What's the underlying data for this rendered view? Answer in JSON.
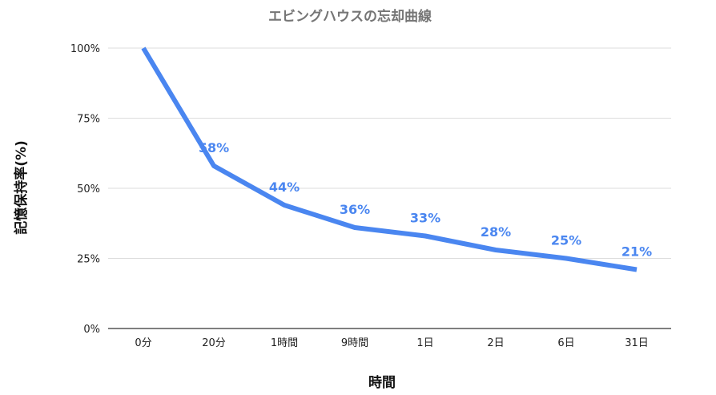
{
  "chart_data": {
    "type": "line",
    "title": "エビングハウスの忘却曲線",
    "xlabel": "時間",
    "ylabel": "記憶保持率(%)",
    "categories": [
      "0分",
      "20分",
      "1時間",
      "9時間",
      "1日",
      "2日",
      "6日",
      "31日"
    ],
    "series": [
      {
        "values": [
          100,
          58,
          44,
          36,
          33,
          28,
          25,
          21
        ],
        "data_labels": [
          "",
          "58%",
          "44%",
          "36%",
          "33%",
          "28%",
          "25%",
          "21%"
        ],
        "color": "#4a86f0"
      }
    ],
    "y_ticks": [
      "0%",
      "25%",
      "50%",
      "75%",
      "100%"
    ],
    "ylim": [
      0,
      100
    ],
    "grid": true,
    "legend": "none"
  },
  "colors": {
    "series": "#4a86f0",
    "grid": "#dddddd",
    "title": "#757575"
  }
}
